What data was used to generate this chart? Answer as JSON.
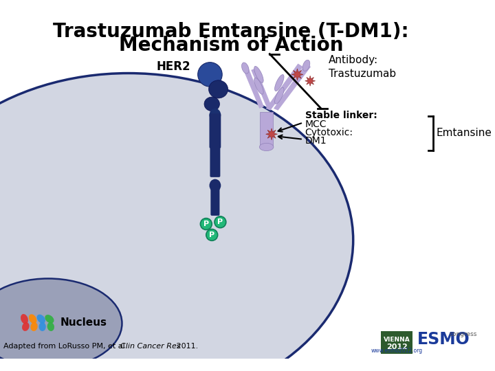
{
  "title_line1": "Trastuzumab Emtansine (T-DM1):",
  "title_line2": "Mechanism of Action",
  "title_fontsize": 20,
  "title_fontweight": "bold",
  "bg_color": "#ffffff",
  "cell_color": "#d2d6e2",
  "cell_border_color": "#1a2a70",
  "nucleus_color": "#9aa0b8",
  "nucleus_border_color": "#1a2a70",
  "her2_label": "HER2",
  "antibody_label": "Antibody:\nTrastuzumab",
  "stable_linker_label": "Stable linker:\nMCC",
  "cytotoxic_label": "Cytotoxic:\nDM1",
  "emtansine_label": "Emtansine",
  "nucleus_label": "Nucleus",
  "her2_color": "#1a2a6a",
  "her2_color2": "#2a4a9a",
  "antibody_color": "#b8a8d8",
  "star_color": "#c04848",
  "phospho_color": "#22b878",
  "bracket_color": "#000000",
  "arrow_color": "#000000",
  "label_fontsize": 11,
  "small_fontsize": 10,
  "footer_fontsize": 8
}
